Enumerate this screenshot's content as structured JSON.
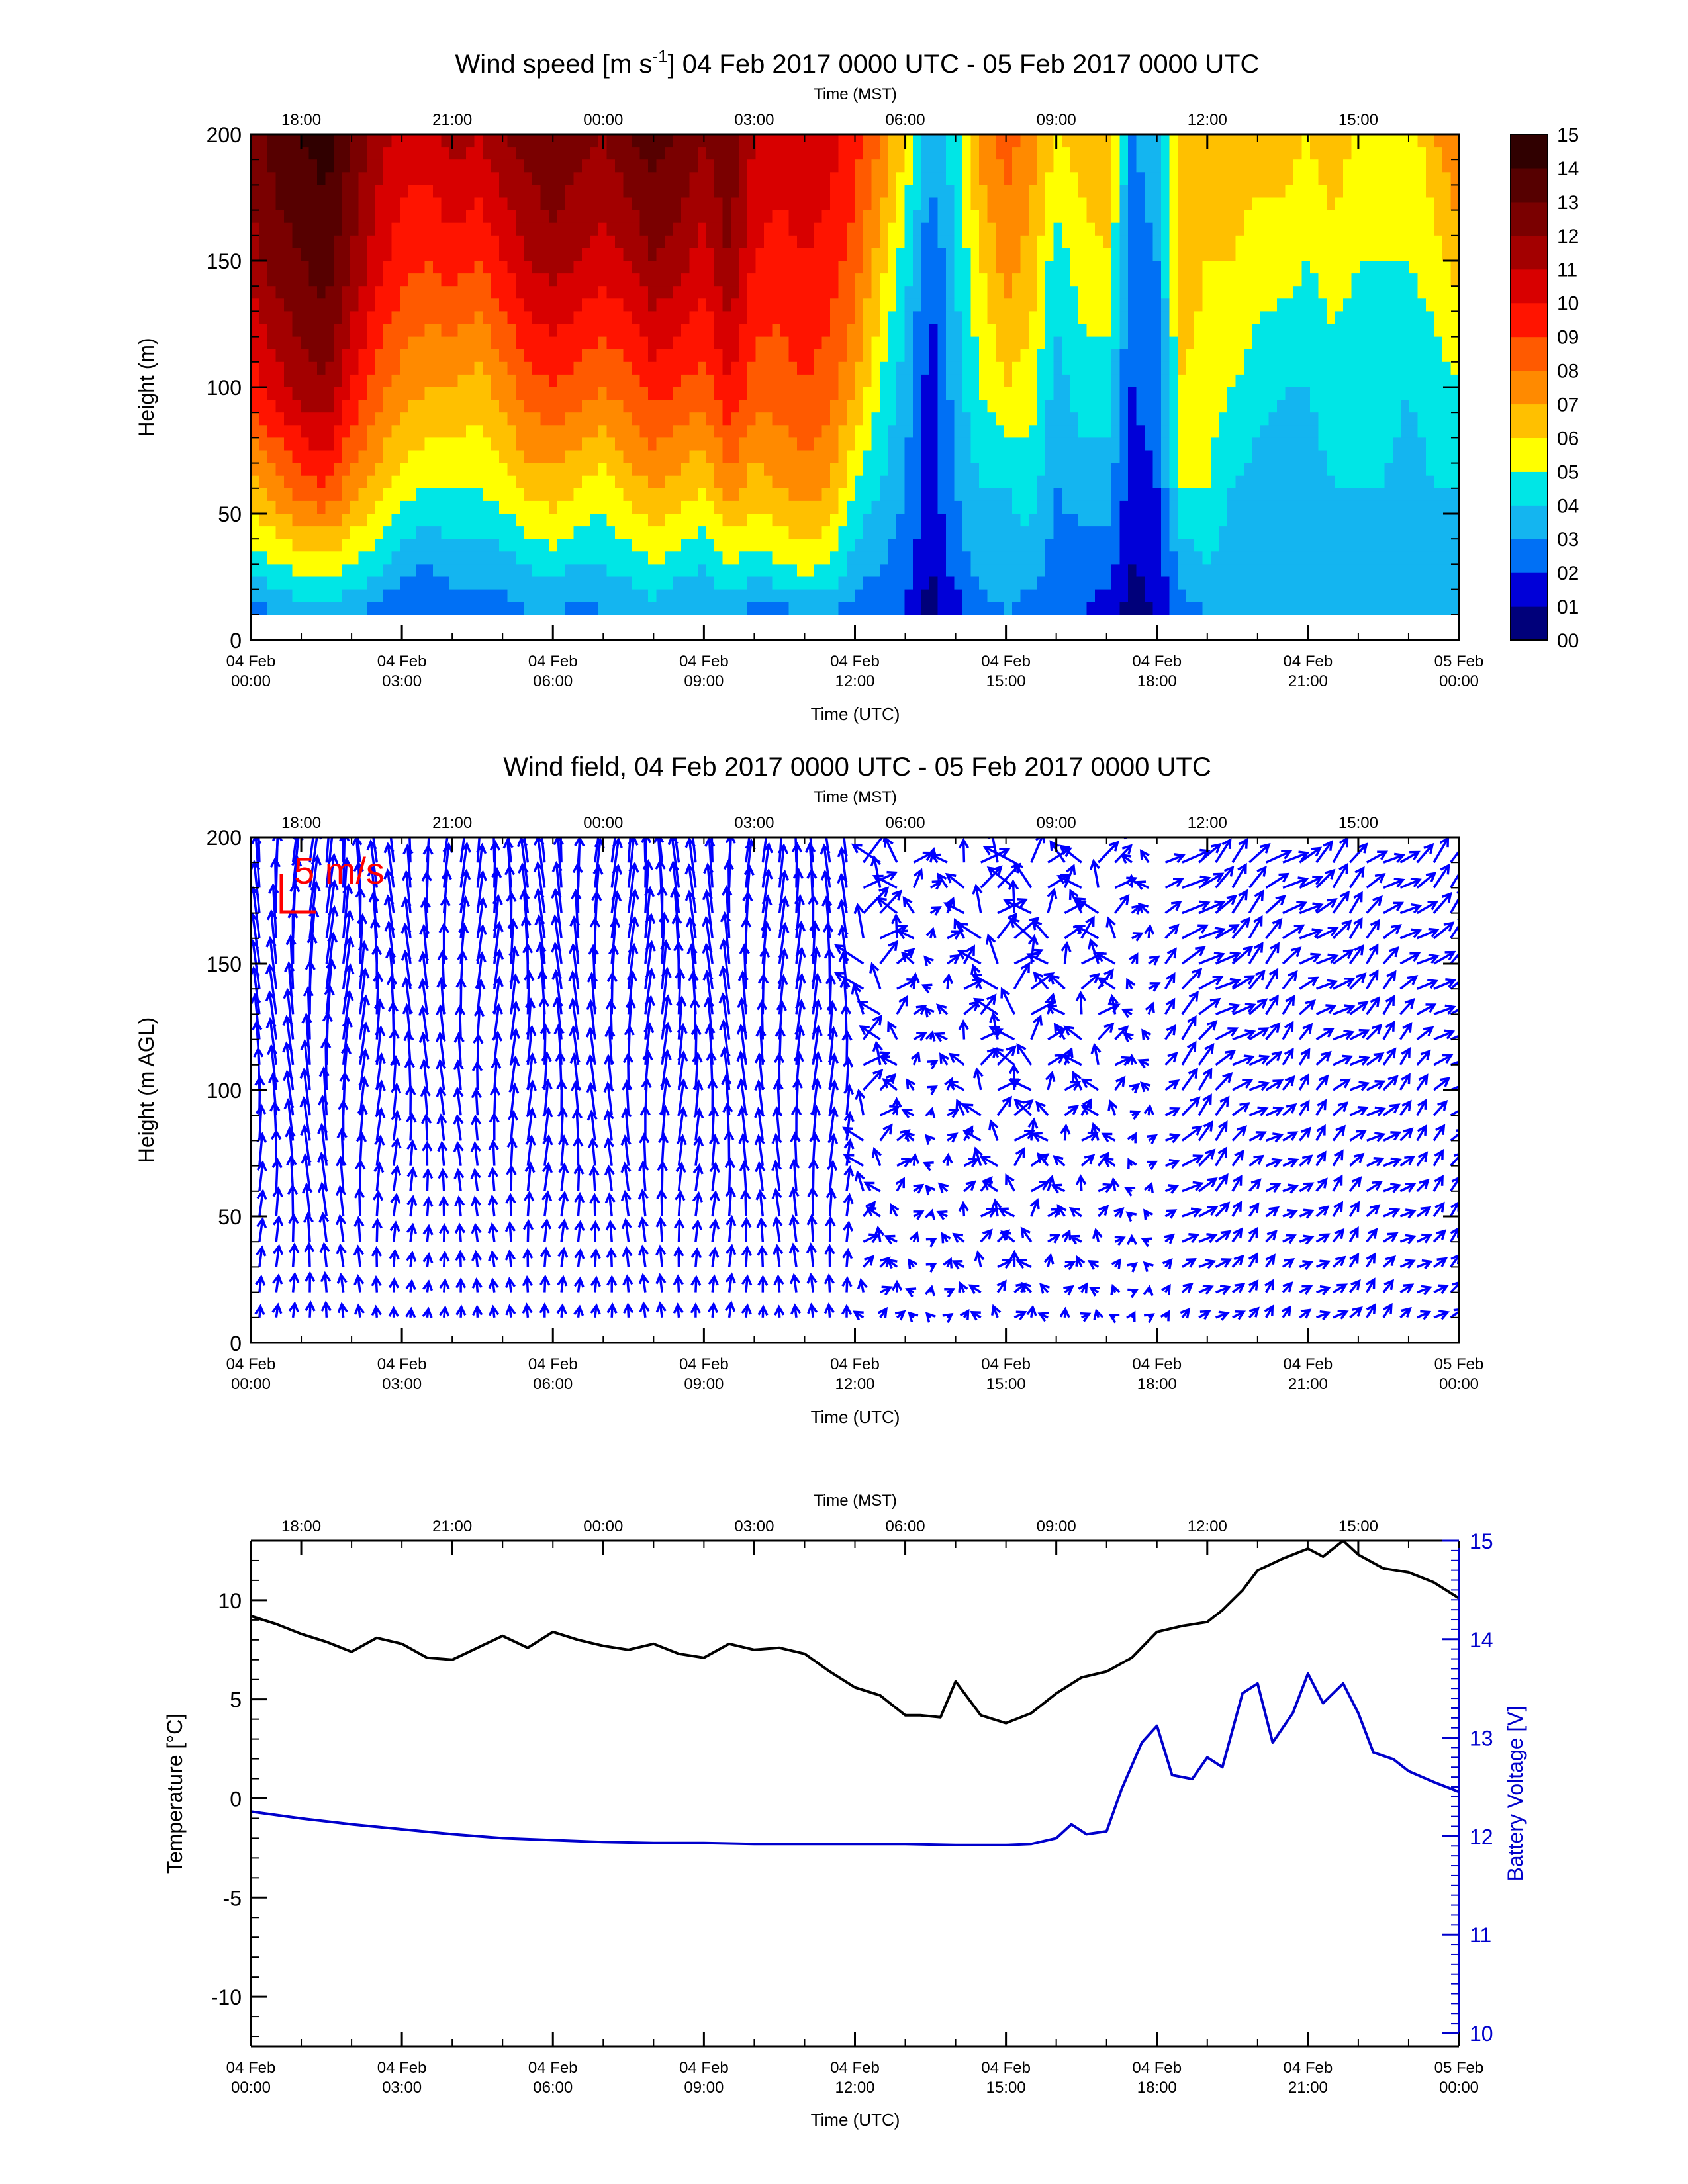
{
  "chart_data": [
    {
      "type": "heatmap",
      "title_main": "Wind speed [m s",
      "title_sup": "-1",
      "title_rest": "] 04 Feb 2017 0000 UTC - 05 Feb 2017 0000 UTC",
      "xlabel": "Time (UTC)",
      "x2label": "Time (MST)",
      "ylabel": "Height (m)",
      "xlim_hours_utc": [
        0,
        24
      ],
      "ylim": [
        0,
        200
      ],
      "x_ticks": [
        {
          "h": 0,
          "l1": "04 Feb",
          "l2": "00:00"
        },
        {
          "h": 3,
          "l1": "04 Feb",
          "l2": "03:00"
        },
        {
          "h": 6,
          "l1": "04 Feb",
          "l2": "06:00"
        },
        {
          "h": 9,
          "l1": "04 Feb",
          "l2": "09:00"
        },
        {
          "h": 12,
          "l1": "04 Feb",
          "l2": "12:00"
        },
        {
          "h": 15,
          "l1": "04 Feb",
          "l2": "15:00"
        },
        {
          "h": 18,
          "l1": "04 Feb",
          "l2": "18:00"
        },
        {
          "h": 21,
          "l1": "04 Feb",
          "l2": "21:00"
        },
        {
          "h": 24,
          "l1": "05 Feb",
          "l2": "00:00"
        }
      ],
      "top_ticks": [
        {
          "h": 1,
          "l": "18:00"
        },
        {
          "h": 4,
          "l": "21:00"
        },
        {
          "h": 7,
          "l": "00:00"
        },
        {
          "h": 10,
          "l": "03:00"
        },
        {
          "h": 13,
          "l": "06:00"
        },
        {
          "h": 16,
          "l": "09:00"
        },
        {
          "h": 19,
          "l": "12:00"
        },
        {
          "h": 22,
          "l": "15:00"
        }
      ],
      "y_ticks": [
        "0",
        "50",
        "100",
        "150",
        "200"
      ],
      "colorbar_labels": [
        "00",
        "01",
        "02",
        "03",
        "04",
        "05",
        "06",
        "07",
        "08",
        "09",
        "10",
        "11",
        "12",
        "13",
        "14",
        "15"
      ],
      "colorbar_colors": [
        "#00007a",
        "#0000d8",
        "#0070f5",
        "#14b5f0",
        "#00e6e6",
        "#ffff00",
        "#ffc000",
        "#ff8a00",
        "#ff5a00",
        "#ff1400",
        "#d80000",
        "#a30000",
        "#7a0000",
        "#560000",
        "#300000"
      ],
      "profile_heights": [
        10,
        30,
        60,
        100,
        150,
        200
      ],
      "profiles": [
        {
          "t": 0.0,
          "w": [
            2.5,
            4.5,
            6.5,
            9.5,
            11.5,
            12.5
          ]
        },
        {
          "t": 0.5,
          "w": [
            3.0,
            5.0,
            7.5,
            10.5,
            12.5,
            13.5
          ]
        },
        {
          "t": 1.0,
          "w": [
            3.5,
            5.5,
            8.5,
            11.5,
            13.0,
            14.0
          ]
        },
        {
          "t": 1.5,
          "w": [
            3.5,
            5.5,
            9.0,
            12.0,
            13.5,
            14.5
          ]
        },
        {
          "t": 2.0,
          "w": [
            3.0,
            5.0,
            7.5,
            10.0,
            12.0,
            13.0
          ]
        },
        {
          "t": 2.5,
          "w": [
            2.5,
            4.5,
            6.5,
            8.5,
            10.5,
            11.5
          ]
        },
        {
          "t": 3.0,
          "w": [
            2.0,
            3.5,
            5.5,
            7.5,
            9.5,
            10.5
          ]
        },
        {
          "t": 3.5,
          "w": [
            2.0,
            3.0,
            5.0,
            7.0,
            9.0,
            10.5
          ]
        },
        {
          "t": 4.0,
          "w": [
            2.5,
            3.5,
            5.0,
            7.0,
            9.5,
            11.5
          ]
        },
        {
          "t": 4.5,
          "w": [
            2.5,
            3.5,
            5.0,
            6.5,
            9.0,
            11.0
          ]
        },
        {
          "t": 5.0,
          "w": [
            2.5,
            3.5,
            5.5,
            7.5,
            10.0,
            12.0
          ]
        },
        {
          "t": 5.5,
          "w": [
            3.0,
            4.0,
            6.5,
            8.5,
            11.0,
            12.5
          ]
        },
        {
          "t": 6.0,
          "w": [
            3.0,
            4.5,
            6.5,
            9.0,
            11.5,
            13.0
          ]
        },
        {
          "t": 6.5,
          "w": [
            2.5,
            4.0,
            6.0,
            8.5,
            11.0,
            12.5
          ]
        },
        {
          "t": 7.0,
          "w": [
            3.0,
            4.0,
            5.5,
            8.0,
            10.5,
            12.0
          ]
        },
        {
          "t": 7.5,
          "w": [
            3.0,
            4.5,
            6.5,
            8.5,
            11.0,
            13.0
          ]
        },
        {
          "t": 8.0,
          "w": [
            3.5,
            5.0,
            7.0,
            9.5,
            12.0,
            13.5
          ]
        },
        {
          "t": 8.5,
          "w": [
            3.0,
            4.5,
            6.5,
            9.0,
            11.5,
            13.0
          ]
        },
        {
          "t": 9.0,
          "w": [
            3.0,
            4.0,
            6.0,
            8.5,
            10.5,
            12.0
          ]
        },
        {
          "t": 9.5,
          "w": [
            3.5,
            5.0,
            7.5,
            10.0,
            12.0,
            13.0
          ]
        },
        {
          "t": 10.0,
          "w": [
            2.5,
            4.5,
            6.5,
            8.5,
            10.0,
            11.0
          ]
        },
        {
          "t": 10.5,
          "w": [
            2.5,
            5.0,
            7.0,
            8.5,
            9.5,
            10.5
          ]
        },
        {
          "t": 11.0,
          "w": [
            3.0,
            5.5,
            7.5,
            9.0,
            10.0,
            11.0
          ]
        },
        {
          "t": 11.5,
          "w": [
            3.0,
            5.0,
            7.0,
            8.5,
            9.5,
            10.5
          ]
        },
        {
          "t": 12.0,
          "w": [
            2.5,
            3.5,
            5.0,
            7.0,
            8.5,
            9.5
          ]
        },
        {
          "t": 12.5,
          "w": [
            2.5,
            3.0,
            4.0,
            5.0,
            6.5,
            8.0
          ]
        },
        {
          "t": 13.0,
          "w": [
            2.0,
            2.5,
            3.0,
            3.5,
            4.5,
            6.0
          ]
        },
        {
          "t": 13.5,
          "w": [
            0.5,
            1.0,
            1.5,
            1.5,
            2.0,
            3.5
          ]
        },
        {
          "t": 14.0,
          "w": [
            1.5,
            2.5,
            3.0,
            3.5,
            4.0,
            4.5
          ]
        },
        {
          "t": 14.5,
          "w": [
            2.5,
            3.5,
            4.0,
            5.0,
            6.0,
            7.5
          ]
        },
        {
          "t": 15.0,
          "w": [
            3.0,
            3.5,
            4.0,
            6.0,
            7.5,
            8.5
          ]
        },
        {
          "t": 15.5,
          "w": [
            2.5,
            3.5,
            4.5,
            5.5,
            6.5,
            7.5
          ]
        },
        {
          "t": 16.0,
          "w": [
            2.0,
            2.5,
            3.0,
            3.5,
            4.5,
            6.0
          ]
        },
        {
          "t": 16.5,
          "w": [
            2.0,
            2.5,
            3.5,
            4.5,
            5.5,
            6.5
          ]
        },
        {
          "t": 17.0,
          "w": [
            1.5,
            2.5,
            3.5,
            4.5,
            6.0,
            7.0
          ]
        },
        {
          "t": 17.5,
          "w": [
            0.5,
            1.0,
            1.5,
            2.0,
            2.5,
            3.0
          ]
        },
        {
          "t": 18.0,
          "w": [
            1.0,
            1.5,
            2.0,
            2.5,
            3.0,
            3.5
          ]
        },
        {
          "t": 18.5,
          "w": [
            2.5,
            3.5,
            5.0,
            6.0,
            6.5,
            7.0
          ]
        },
        {
          "t": 19.0,
          "w": [
            3.0,
            4.0,
            5.0,
            5.5,
            6.0,
            6.5
          ]
        },
        {
          "t": 19.5,
          "w": [
            3.0,
            3.5,
            4.0,
            5.0,
            6.0,
            6.5
          ]
        },
        {
          "t": 20.0,
          "w": [
            3.0,
            3.5,
            3.5,
            4.5,
            5.5,
            6.5
          ]
        },
        {
          "t": 20.5,
          "w": [
            3.0,
            3.0,
            3.5,
            4.0,
            5.5,
            6.5
          ]
        },
        {
          "t": 21.0,
          "w": [
            3.0,
            3.0,
            3.5,
            4.0,
            5.0,
            6.0
          ]
        },
        {
          "t": 21.5,
          "w": [
            3.5,
            3.5,
            4.0,
            4.5,
            5.5,
            7.0
          ]
        },
        {
          "t": 22.0,
          "w": [
            3.5,
            3.5,
            4.0,
            4.5,
            5.0,
            5.5
          ]
        },
        {
          "t": 22.5,
          "w": [
            3.5,
            3.5,
            4.0,
            4.5,
            5.0,
            5.0
          ]
        },
        {
          "t": 23.0,
          "w": [
            3.0,
            3.5,
            3.5,
            4.0,
            5.0,
            5.0
          ]
        },
        {
          "t": 23.5,
          "w": [
            3.5,
            3.5,
            4.0,
            4.5,
            5.5,
            7.0
          ]
        },
        {
          "t": 24.0,
          "w": [
            3.5,
            3.5,
            4.0,
            5.0,
            6.5,
            8.0
          ]
        }
      ]
    },
    {
      "type": "scatter",
      "title": "Wind field, 04 Feb 2017 0000 UTC - 05 Feb 2017 0000 UTC",
      "xlabel": "Time (UTC)",
      "x2label": "Time (MST)",
      "ylabel": "Height (m AGL)",
      "y_ticks": [
        "0",
        "50",
        "100",
        "150",
        "200"
      ],
      "scale_label": "5 m/s",
      "scale_speed": 5,
      "arrow_color": "#0000ff",
      "scale_color": "#ff0000",
      "heights": [
        10,
        20,
        30,
        40,
        50,
        60,
        70,
        80,
        90,
        100,
        110,
        120,
        130,
        140,
        150,
        160,
        170,
        180,
        190,
        200
      ],
      "time_step_hours": 0.3333
    },
    {
      "type": "line",
      "xlabel": "Time (UTC)",
      "x2label": "Time (MST)",
      "ylabel": "Temperature [°C]",
      "y2label": "Battery Voltage [V]",
      "ylim": [
        -12.5,
        13
      ],
      "y2lim": [
        10,
        15
      ],
      "y_ticks": [
        "-10",
        "-5",
        "0",
        "5",
        "10"
      ],
      "y2_ticks": [
        "10",
        "11",
        "12",
        "13",
        "14",
        "15"
      ],
      "series": [
        {
          "color": "#000000",
          "x": [
            0,
            0.5,
            1,
            1.5,
            2,
            2.5,
            3,
            3.5,
            4,
            4.5,
            5,
            5.5,
            6,
            6.5,
            7,
            7.5,
            8,
            8.5,
            9,
            9.5,
            10,
            10.5,
            11,
            11.5,
            12,
            12.5,
            13,
            13.3,
            13.7,
            14,
            14.5,
            15,
            15.5,
            16,
            16.5,
            17,
            17.5,
            18,
            18.5,
            19,
            19.3,
            19.7,
            20,
            20.5,
            21,
            21.3,
            21.7,
            22,
            22.5,
            23,
            23.5,
            24
          ],
          "y": [
            9.2,
            8.8,
            8.3,
            7.9,
            7.4,
            8.1,
            7.8,
            7.1,
            7.0,
            7.6,
            8.2,
            7.6,
            8.4,
            8.0,
            7.7,
            7.5,
            7.8,
            7.3,
            7.1,
            7.8,
            7.5,
            7.6,
            7.3,
            6.4,
            5.6,
            5.2,
            4.2,
            4.2,
            4.1,
            5.9,
            4.2,
            3.8,
            4.3,
            5.3,
            6.1,
            6.4,
            7.1,
            8.4,
            8.7,
            8.9,
            9.5,
            10.5,
            11.5,
            12.1,
            12.6,
            12.2,
            13.0,
            12.3,
            11.6,
            11.4,
            10.9,
            10.1
          ]
        },
        {
          "color": "#0000cc",
          "x": [
            0,
            1,
            2,
            3,
            4,
            5,
            6,
            7,
            8,
            9,
            10,
            11,
            12,
            13,
            14,
            15,
            15.5,
            16,
            16.3,
            16.6,
            17,
            17.3,
            17.7,
            18,
            18.3,
            18.7,
            19,
            19.3,
            19.7,
            20,
            20.3,
            20.7,
            21,
            21.3,
            21.7,
            22,
            22.3,
            22.7,
            23,
            23.5,
            24
          ],
          "y": [
            12.25,
            12.18,
            12.12,
            12.07,
            12.02,
            11.98,
            11.96,
            11.94,
            11.93,
            11.93,
            11.92,
            11.92,
            11.92,
            11.92,
            11.91,
            11.91,
            11.92,
            11.98,
            12.12,
            12.02,
            12.05,
            12.48,
            12.95,
            13.12,
            12.62,
            12.58,
            12.8,
            12.7,
            13.45,
            13.55,
            12.95,
            13.25,
            13.65,
            13.35,
            13.55,
            13.25,
            12.85,
            12.78,
            12.66,
            12.55,
            12.45
          ]
        }
      ]
    }
  ]
}
